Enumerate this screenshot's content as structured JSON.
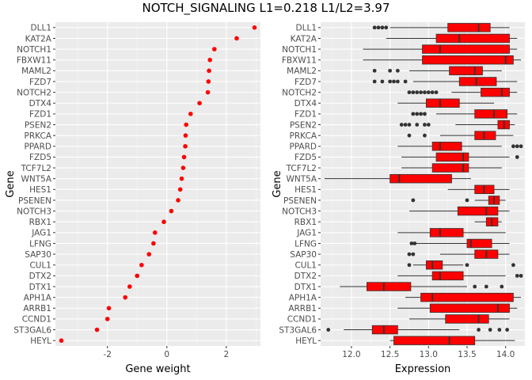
{
  "title": "NOTCH_SIGNALING L1=0.218 L1/L2=3.97",
  "chart_data": [
    {
      "type": "scatter",
      "xlabel": "Gene weight",
      "ylabel": "Gene",
      "xlim": [
        -3.75,
        3.15
      ],
      "x_ticks": [
        "-2",
        "0",
        "2"
      ],
      "x_tick_values": [
        -2,
        0,
        2
      ],
      "point_color": "#ff0000",
      "grid": true,
      "genes": [
        "DLL1",
        "KAT2A",
        "NOTCH1",
        "FBXW11",
        "MAML2",
        "FZD7",
        "NOTCH2",
        "DTX4",
        "FZD1",
        "PSEN2",
        "PRKCA",
        "PPARD",
        "FZD5",
        "TCF7L2",
        "WNT5A",
        "HES1",
        "PSENEN",
        "NOTCH3",
        "RBX1",
        "JAG1",
        "LFNG",
        "SAP30",
        "CUL1",
        "DTX2",
        "DTX1",
        "APH1A",
        "ARRB1",
        "CCND1",
        "ST3GAL6",
        "HEYL"
      ],
      "values": [
        2.95,
        2.35,
        1.6,
        1.45,
        1.42,
        1.4,
        1.38,
        1.1,
        0.8,
        0.65,
        0.63,
        0.62,
        0.58,
        0.55,
        0.5,
        0.45,
        0.38,
        0.15,
        -0.1,
        -0.4,
        -0.45,
        -0.6,
        -0.85,
        -1.0,
        -1.25,
        -1.4,
        -1.95,
        -2.0,
        -2.35,
        -3.55
      ]
    },
    {
      "type": "box",
      "xlabel": "Expression",
      "ylabel": "Gene",
      "xlim": [
        11.6,
        14.25
      ],
      "x_ticks": [
        "12.0",
        "12.5",
        "13.0",
        "13.5",
        "14.0"
      ],
      "x_tick_values": [
        12.0,
        12.5,
        13.0,
        13.5,
        14.0
      ],
      "box_color": "#ff0000",
      "grid": true,
      "genes": [
        "DLL1",
        "KAT2A",
        "NOTCH1",
        "FBXW11",
        "MAML2",
        "FZD7",
        "NOTCH2",
        "DTX4",
        "FZD1",
        "PSEN2",
        "PRKCA",
        "PPARD",
        "FZD5",
        "TCF7L2",
        "WNT5A",
        "HES1",
        "PSENEN",
        "NOTCH3",
        "RBX1",
        "JAG1",
        "LFNG",
        "SAP30",
        "CUL1",
        "DTX2",
        "DTX1",
        "APH1A",
        "ARRB1",
        "CCND1",
        "ST3GAL6",
        "HEYL"
      ],
      "boxes": [
        {
          "whisker_low": 12.5,
          "q1": 13.25,
          "median": 13.65,
          "q3": 13.8,
          "whisker_high": 14.05,
          "outliers": [
            12.3,
            12.35,
            12.4,
            12.45
          ]
        },
        {
          "whisker_low": 12.45,
          "q1": 13.1,
          "median": 13.4,
          "q3": 14.05,
          "whisker_high": 14.15,
          "outliers": []
        },
        {
          "whisker_low": 12.15,
          "q1": 12.92,
          "median": 13.15,
          "q3": 14.05,
          "whisker_high": 14.15,
          "outliers": []
        },
        {
          "whisker_low": 12.15,
          "q1": 12.92,
          "median": 14.0,
          "q3": 14.1,
          "whisker_high": 14.2,
          "outliers": []
        },
        {
          "whisker_low": 12.75,
          "q1": 13.27,
          "median": 13.6,
          "q3": 13.7,
          "whisker_high": 13.95,
          "outliers": [
            12.3,
            12.5,
            12.6
          ]
        },
        {
          "whisker_low": 12.8,
          "q1": 13.4,
          "median": 13.62,
          "q3": 13.88,
          "whisker_high": 14.15,
          "outliers": [
            12.3,
            12.4,
            12.5,
            12.55,
            12.6,
            12.7
          ]
        },
        {
          "whisker_low": 13.3,
          "q1": 13.68,
          "median": 13.95,
          "q3": 14.05,
          "whisker_high": 14.15,
          "outliers": [
            12.75,
            12.8,
            12.85,
            12.9,
            12.95,
            13.0,
            13.05,
            13.1
          ]
        },
        {
          "whisker_low": 12.6,
          "q1": 12.97,
          "median": 13.15,
          "q3": 13.4,
          "whisker_high": 13.85,
          "outliers": []
        },
        {
          "whisker_low": 13.1,
          "q1": 13.6,
          "median": 13.85,
          "q3": 14.02,
          "whisker_high": 14.15,
          "outliers": [
            12.8,
            12.85,
            12.9,
            12.95
          ]
        },
        {
          "whisker_low": 13.35,
          "q1": 13.9,
          "median": 13.98,
          "q3": 14.05,
          "whisker_high": 14.12,
          "outliers": [
            12.65,
            12.7,
            12.75,
            12.85,
            12.95,
            13.0
          ]
        },
        {
          "whisker_low": 13.15,
          "q1": 13.6,
          "median": 13.72,
          "q3": 13.87,
          "whisker_high": 14.1,
          "outliers": [
            12.75,
            12.95
          ]
        },
        {
          "whisker_low": 12.6,
          "q1": 13.05,
          "median": 13.15,
          "q3": 13.43,
          "whisker_high": 13.95,
          "outliers": [
            14.1,
            14.15,
            14.2
          ]
        },
        {
          "whisker_low": 12.65,
          "q1": 13.1,
          "median": 13.45,
          "q3": 13.52,
          "whisker_high": 14.05,
          "outliers": [
            14.15
          ]
        },
        {
          "whisker_low": 12.65,
          "q1": 13.05,
          "median": 13.45,
          "q3": 13.52,
          "whisker_high": 13.95,
          "outliers": []
        },
        {
          "whisker_low": 11.65,
          "q1": 12.5,
          "median": 12.62,
          "q3": 13.3,
          "whisker_high": 13.55,
          "outliers": []
        },
        {
          "whisker_low": 13.25,
          "q1": 13.6,
          "median": 13.72,
          "q3": 13.85,
          "whisker_high": 14.05,
          "outliers": []
        },
        {
          "whisker_low": 13.6,
          "q1": 13.78,
          "median": 13.85,
          "q3": 13.92,
          "whisker_high": 14.0,
          "outliers": [
            12.8,
            13.5
          ]
        },
        {
          "whisker_low": 12.75,
          "q1": 13.38,
          "median": 13.75,
          "q3": 13.9,
          "whisker_high": 14.05,
          "outliers": []
        },
        {
          "whisker_low": 13.6,
          "q1": 13.75,
          "median": 13.82,
          "q3": 13.9,
          "whisker_high": 13.95,
          "outliers": []
        },
        {
          "whisker_low": 12.6,
          "q1": 13.02,
          "median": 13.15,
          "q3": 13.45,
          "whisker_high": 14.0,
          "outliers": []
        },
        {
          "whisker_low": 12.8,
          "q1": 13.5,
          "median": 13.55,
          "q3": 13.82,
          "whisker_high": 14.05,
          "outliers": [
            12.78,
            12.82
          ]
        },
        {
          "whisker_low": 13.15,
          "q1": 13.6,
          "median": 13.75,
          "q3": 13.9,
          "whisker_high": 14.05,
          "outliers": [
            12.75,
            12.8
          ]
        },
        {
          "whisker_low": 12.8,
          "q1": 12.97,
          "median": 13.05,
          "q3": 13.18,
          "whisker_high": 13.45,
          "outliers": [
            12.75,
            13.5,
            14.1
          ]
        },
        {
          "whisker_low": 12.6,
          "q1": 13.05,
          "median": 13.15,
          "q3": 13.45,
          "whisker_high": 14.0,
          "outliers": [
            14.15,
            14.2
          ]
        },
        {
          "whisker_low": 11.85,
          "q1": 12.2,
          "median": 12.42,
          "q3": 12.77,
          "whisker_high": 13.5,
          "outliers": [
            13.6,
            13.75,
            13.95
          ]
        },
        {
          "whisker_low": 12.7,
          "q1": 12.9,
          "median": 13.05,
          "q3": 14.1,
          "whisker_high": 14.2,
          "outliers": []
        },
        {
          "whisker_low": 12.6,
          "q1": 13.02,
          "median": 13.9,
          "q3": 14.05,
          "whisker_high": 14.15,
          "outliers": []
        },
        {
          "whisker_low": 12.75,
          "q1": 13.22,
          "median": 13.65,
          "q3": 13.78,
          "whisker_high": 14.05,
          "outliers": []
        },
        {
          "whisker_low": 11.9,
          "q1": 12.27,
          "median": 12.42,
          "q3": 12.6,
          "whisker_high": 13.4,
          "outliers": [
            11.7,
            13.65,
            13.8,
            13.92,
            14.02
          ]
        },
        {
          "whisker_low": 12.5,
          "q1": 12.55,
          "median": 13.27,
          "q3": 13.6,
          "whisker_high": 14.12,
          "outliers": []
        }
      ]
    }
  ]
}
